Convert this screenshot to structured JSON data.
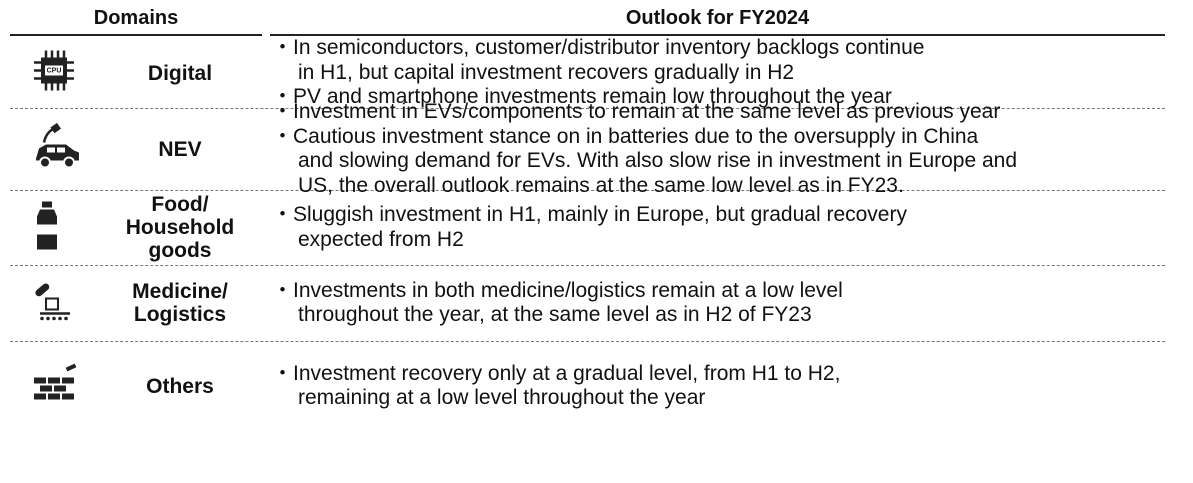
{
  "table": {
    "headers": [
      "Domains",
      "Outlook for FY2024"
    ],
    "rows": [
      {
        "domain": [
          "Digital"
        ],
        "bullets": [
          [
            "・In semiconductors, customer/distributor inventory backlogs continue",
            "in H1, but capital investment recovers gradually in H2"
          ],
          [
            "・PV and smartphone investments remain low throughout the year"
          ]
        ]
      },
      {
        "domain": [
          "NEV"
        ],
        "bullets": [
          [
            "・Investment in EVs/components to remain at the same level as previous year"
          ],
          [
            "・Cautious investment stance on in batteries due to the oversupply in China",
            "and slowing demand for EVs. With also slow rise in investment in Europe and",
            "US, the overall outlook remains at the same low level as in FY23."
          ]
        ]
      },
      {
        "domain": [
          "Food/",
          "Household",
          "goods"
        ],
        "bullets": [
          [
            "・Sluggish investment in H1, mainly in Europe, but gradual recovery",
            "expected from H2"
          ]
        ]
      },
      {
        "domain": [
          "Medicine/",
          "Logistics"
        ],
        "bullets": [
          [
            "・Investments in both medicine/logistics remain at a low level",
            "throughout the year, at the same level as in H2 of FY23"
          ]
        ]
      },
      {
        "domain": [
          "Others"
        ],
        "bullets": [
          [
            "・Investment recovery only at a gradual level, from H1 to H2,",
            "remaining at a low level throughout the year"
          ]
        ]
      }
    ]
  }
}
